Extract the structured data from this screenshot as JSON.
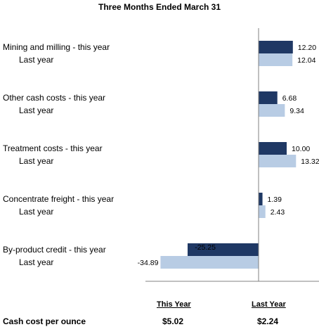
{
  "chart_data": {
    "type": "bar",
    "orientation": "horizontal",
    "title": "Three Months Ended March 31",
    "categories": [
      "Mining and milling",
      "Other cash costs",
      "Treatment costs",
      "Concentrate freight",
      "By-product credit"
    ],
    "row_labels": [
      {
        "this_year": "Mining and milling - this year",
        "last_year": "Last year"
      },
      {
        "this_year": "Other cash costs - this year",
        "last_year": "Last year"
      },
      {
        "this_year": "Treatment costs - this year",
        "last_year": "Last year"
      },
      {
        "this_year": "Concentrate freight - this year",
        "last_year": "Last year"
      },
      {
        "this_year": "By-product credit - this year",
        "last_year": "Last year"
      }
    ],
    "series": [
      {
        "key": "this_year",
        "values": [
          12.2,
          6.68,
          10.0,
          1.39,
          -25.25
        ],
        "color": "#1f3864"
      },
      {
        "key": "last_year",
        "values": [
          12.04,
          9.34,
          13.32,
          2.43,
          -34.89
        ],
        "color": "#b8cce4"
      }
    ],
    "value_labels": {
      "this_year": [
        "12.20",
        "6.68",
        "10.00",
        "1.39",
        "-25.25"
      ],
      "last_year": [
        "12.04",
        "9.34",
        "13.32",
        "2.43",
        "-34.89"
      ]
    },
    "xlim": [
      -36,
      15
    ],
    "grid": false,
    "legend": "none"
  },
  "summary": {
    "label": "Cash cost per ounce",
    "this_year_header": "This Year",
    "last_year_header": "Last Year",
    "this_year_value": "$5.02",
    "last_year_value": "$2.24"
  }
}
